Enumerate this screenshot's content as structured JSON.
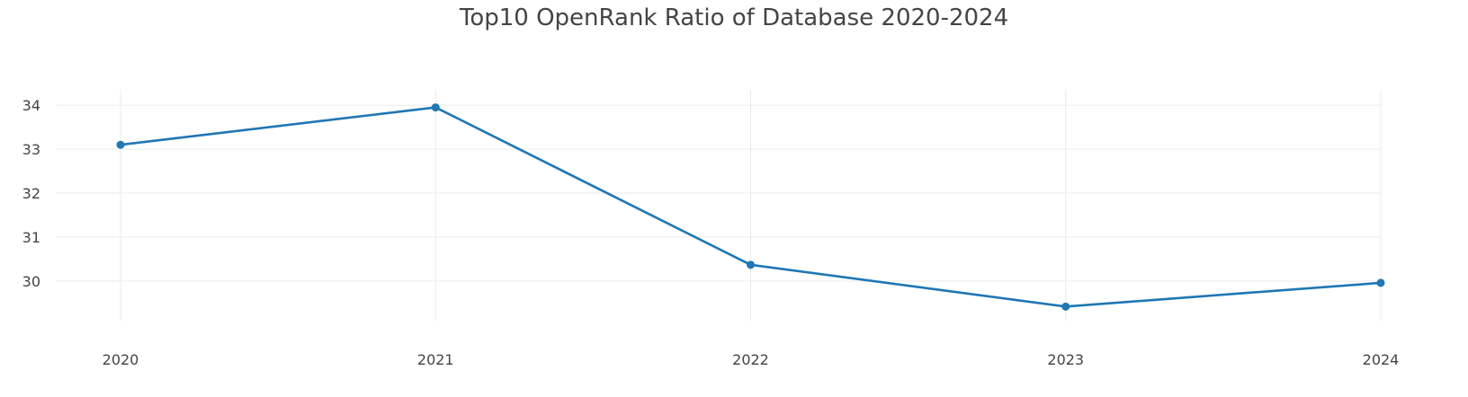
{
  "chart_data": {
    "type": "line",
    "title": "Top10 OpenRank Ratio of Database 2020-2024",
    "xlabel": "",
    "ylabel": "",
    "categories": [
      "2020",
      "2021",
      "2022",
      "2023",
      "2024"
    ],
    "series": [
      {
        "values": [
          33.1,
          33.95,
          30.37,
          29.42,
          29.96
        ],
        "color": "#1f77b4"
      }
    ],
    "yticks": [
      "30",
      "31",
      "32",
      "33",
      "34"
    ],
    "ylim": [
      29.1,
      34.35
    ],
    "grid": true,
    "legend": "none",
    "colors": {
      "line": "#1f77b4",
      "grid": "#ebebeb",
      "text": "#444444"
    }
  }
}
